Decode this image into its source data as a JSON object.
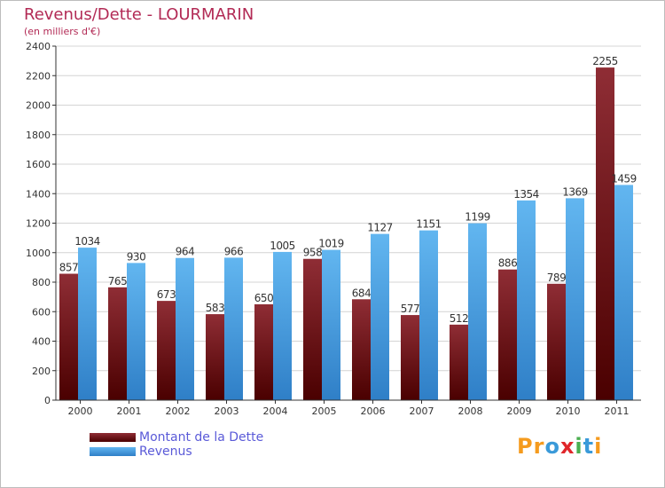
{
  "title": "Revenus/Dette - LOURMARIN",
  "subtitle": "(en milliers d'€)",
  "logo": {
    "text": "Proxiti",
    "letters": [
      "P",
      "r",
      "o",
      "x",
      "i",
      "t",
      "i"
    ],
    "colors": [
      "#f59b1e",
      "#f59b1e",
      "#3a9ad9",
      "#e0262a",
      "#4caf50",
      "#3a9ad9",
      "#f59b1e"
    ]
  },
  "colors": {
    "debt_top": "#8f2d35",
    "debt_bottom": "#4a0000",
    "rev_top": "#62b6f0",
    "rev_bottom": "#2f7fc7",
    "grid": "#d4d4d4",
    "axis": "#333333",
    "title": "#b22a55",
    "legend_text": "#5a5ad8"
  },
  "chart_data": {
    "type": "bar",
    "title": "Revenus/Dette - LOURMARIN",
    "ylabel": "(en milliers d'€)",
    "xlabel": "",
    "categories": [
      "2000",
      "2001",
      "2002",
      "2003",
      "2004",
      "2005",
      "2006",
      "2007",
      "2008",
      "2009",
      "2010",
      "2011"
    ],
    "series": [
      {
        "name": "Montant de la Dette",
        "values": [
          857,
          765,
          673,
          583,
          650,
          958,
          684,
          577,
          512,
          886,
          789,
          2255
        ]
      },
      {
        "name": "Revenus",
        "values": [
          1034,
          930,
          964,
          966,
          1005,
          1019,
          1127,
          1151,
          1199,
          1354,
          1369,
          1459
        ]
      }
    ],
    "ylim": [
      0,
      2400
    ],
    "yticks": [
      0,
      200,
      400,
      600,
      800,
      1000,
      1200,
      1400,
      1600,
      1800,
      2000,
      2200,
      2400
    ],
    "grid": true,
    "legend_position": "bottom-left"
  }
}
